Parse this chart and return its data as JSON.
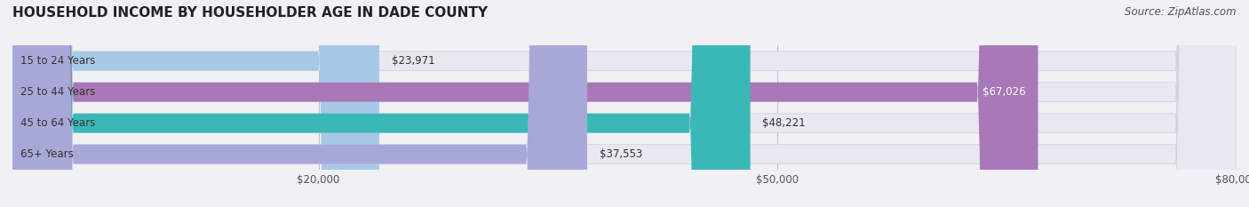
{
  "title": "HOUSEHOLD INCOME BY HOUSEHOLDER AGE IN DADE COUNTY",
  "source_text": "Source: ZipAtlas.com",
  "categories": [
    "15 to 24 Years",
    "25 to 44 Years",
    "45 to 64 Years",
    "65+ Years"
  ],
  "values": [
    23971,
    67026,
    48221,
    37553
  ],
  "bar_colors": [
    "#a8c8e8",
    "#a878b8",
    "#3ab8b8",
    "#a8a8d8"
  ],
  "bar_labels": [
    "$23,971",
    "$67,026",
    "$48,221",
    "$37,553"
  ],
  "xlim": [
    0,
    80000
  ],
  "xticks": [
    20000,
    50000,
    80000
  ],
  "xticklabels": [
    "$20,000",
    "$50,000",
    "$80,000"
  ],
  "background_color": "#f0f0f5",
  "bar_bg_color": "#e8e8f0",
  "title_fontsize": 11,
  "source_fontsize": 8.5,
  "label_fontsize": 8.5,
  "cat_fontsize": 8.5,
  "tick_fontsize": 8.5
}
